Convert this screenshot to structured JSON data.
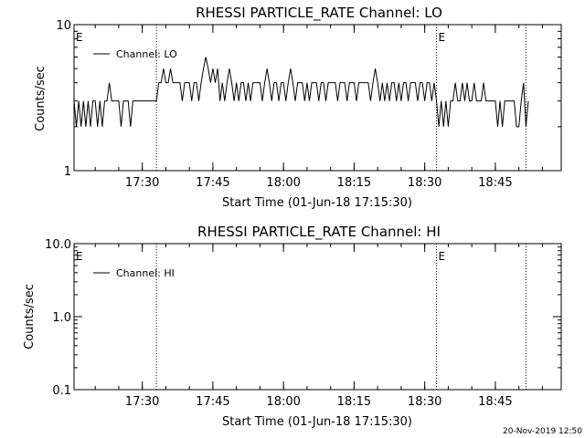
{
  "chart_data": [
    {
      "type": "line",
      "title": "RHESSI PARTICLE_RATE Channel: LO",
      "xlabel": "Start Time (01-Jun-18 17:15:30)",
      "ylabel": "Counts/sec",
      "yscale": "log",
      "ylim": [
        1,
        10
      ],
      "xlim": [
        "17:15:30",
        "18:59:00"
      ],
      "x_ticks": [
        "17:30",
        "17:45",
        "18:00",
        "18:15",
        "18:30",
        "18:45"
      ],
      "y_ticks": [
        "1",
        "10"
      ],
      "grid": false,
      "legend": {
        "position": "top-left",
        "entries": [
          "Channel: LO"
        ]
      },
      "event_markers": [
        {
          "time": "17:15:30",
          "label": "E"
        },
        {
          "time": "17:33:00",
          "label": ""
        },
        {
          "time": "18:32:30",
          "label": "E"
        },
        {
          "time": "18:51:30",
          "label": ""
        }
      ],
      "series": [
        {
          "name": "Channel: LO",
          "color": "#000000",
          "points": [
            [
              "17:15:30",
              3
            ],
            [
              "17:16:00",
              2
            ],
            [
              "17:16:30",
              3
            ],
            [
              "17:17:00",
              2
            ],
            [
              "17:17:30",
              3
            ],
            [
              "17:18:00",
              2
            ],
            [
              "17:18:30",
              3
            ],
            [
              "17:19:00",
              2
            ],
            [
              "17:19:30",
              3
            ],
            [
              "17:20:00",
              3
            ],
            [
              "17:20:30",
              2
            ],
            [
              "17:21:00",
              3
            ],
            [
              "17:21:30",
              2
            ],
            [
              "17:22:00",
              3
            ],
            [
              "17:22:30",
              3
            ],
            [
              "17:23:00",
              4
            ],
            [
              "17:23:30",
              3
            ],
            [
              "17:24:00",
              3
            ],
            [
              "17:25:00",
              3
            ],
            [
              "17:25:30",
              2
            ],
            [
              "17:26:00",
              3
            ],
            [
              "17:27:00",
              3
            ],
            [
              "17:27:30",
              2
            ],
            [
              "17:28:00",
              3
            ],
            [
              "17:29:00",
              3
            ],
            [
              "17:30:00",
              3
            ],
            [
              "17:31:00",
              3
            ],
            [
              "17:32:00",
              3
            ],
            [
              "17:33:00",
              3
            ],
            [
              "17:33:30",
              4
            ],
            [
              "17:34:00",
              4
            ],
            [
              "17:34:30",
              5
            ],
            [
              "17:35:00",
              4
            ],
            [
              "17:35:30",
              4
            ],
            [
              "17:36:00",
              5
            ],
            [
              "17:36:30",
              4
            ],
            [
              "17:37:00",
              4
            ],
            [
              "17:38:00",
              4
            ],
            [
              "17:38:30",
              3
            ],
            [
              "17:39:00",
              4
            ],
            [
              "17:40:00",
              4
            ],
            [
              "17:40:30",
              3
            ],
            [
              "17:41:00",
              4
            ],
            [
              "17:41:30",
              4
            ],
            [
              "17:42:00",
              3
            ],
            [
              "17:42:30",
              4
            ],
            [
              "17:43:00",
              5
            ],
            [
              "17:43:30",
              6
            ],
            [
              "17:44:00",
              5
            ],
            [
              "17:44:30",
              4
            ],
            [
              "17:45:00",
              5
            ],
            [
              "17:45:30",
              4
            ],
            [
              "17:46:00",
              5
            ],
            [
              "17:46:30",
              3
            ],
            [
              "17:47:00",
              4
            ],
            [
              "17:47:30",
              3
            ],
            [
              "17:48:00",
              4
            ],
            [
              "17:48:30",
              5
            ],
            [
              "17:49:00",
              4
            ],
            [
              "17:49:30",
              3
            ],
            [
              "17:50:00",
              4
            ],
            [
              "17:50:30",
              3
            ],
            [
              "17:51:00",
              4
            ],
            [
              "17:51:30",
              4
            ],
            [
              "17:52:00",
              3
            ],
            [
              "17:52:30",
              4
            ],
            [
              "17:53:00",
              3
            ],
            [
              "17:53:30",
              4
            ],
            [
              "17:54:00",
              4
            ],
            [
              "17:55:00",
              4
            ],
            [
              "17:55:30",
              3
            ],
            [
              "17:56:00",
              4
            ],
            [
              "17:56:30",
              5
            ],
            [
              "17:57:00",
              4
            ],
            [
              "17:57:30",
              3
            ],
            [
              "17:58:00",
              4
            ],
            [
              "17:58:30",
              4
            ],
            [
              "17:59:00",
              3
            ],
            [
              "17:59:30",
              4
            ],
            [
              "18:00:00",
              4
            ],
            [
              "18:00:30",
              3
            ],
            [
              "18:01:00",
              4
            ],
            [
              "18:01:30",
              5
            ],
            [
              "18:02:00",
              4
            ],
            [
              "18:02:30",
              3
            ],
            [
              "18:03:00",
              4
            ],
            [
              "18:04:00",
              4
            ],
            [
              "18:04:30",
              3
            ],
            [
              "18:05:00",
              4
            ],
            [
              "18:05:30",
              3
            ],
            [
              "18:06:00",
              4
            ],
            [
              "18:07:00",
              4
            ],
            [
              "18:07:30",
              3
            ],
            [
              "18:08:00",
              4
            ],
            [
              "18:08:30",
              4
            ],
            [
              "18:09:00",
              3
            ],
            [
              "18:09:30",
              4
            ],
            [
              "18:10:00",
              4
            ],
            [
              "18:11:00",
              4
            ],
            [
              "18:11:30",
              3
            ],
            [
              "18:12:00",
              4
            ],
            [
              "18:13:00",
              4
            ],
            [
              "18:13:30",
              3
            ],
            [
              "18:14:00",
              4
            ],
            [
              "18:15:00",
              4
            ],
            [
              "18:15:30",
              3
            ],
            [
              "18:16:00",
              4
            ],
            [
              "18:17:00",
              4
            ],
            [
              "18:18:00",
              4
            ],
            [
              "18:18:30",
              3
            ],
            [
              "18:19:00",
              4
            ],
            [
              "18:19:30",
              5
            ],
            [
              "18:20:00",
              4
            ],
            [
              "18:20:30",
              3
            ],
            [
              "18:21:00",
              4
            ],
            [
              "18:21:30",
              3
            ],
            [
              "18:22:00",
              4
            ],
            [
              "18:22:30",
              3
            ],
            [
              "18:23:00",
              4
            ],
            [
              "18:23:30",
              4
            ],
            [
              "18:24:00",
              3
            ],
            [
              "18:24:30",
              4
            ],
            [
              "18:25:00",
              3
            ],
            [
              "18:25:30",
              4
            ],
            [
              "18:26:00",
              4
            ],
            [
              "18:26:30",
              3
            ],
            [
              "18:27:00",
              4
            ],
            [
              "18:28:00",
              4
            ],
            [
              "18:28:30",
              3
            ],
            [
              "18:29:00",
              4
            ],
            [
              "18:29:30",
              4
            ],
            [
              "18:30:00",
              3
            ],
            [
              "18:30:30",
              4
            ],
            [
              "18:31:00",
              4
            ],
            [
              "18:31:30",
              3
            ],
            [
              "18:32:00",
              4
            ],
            [
              "18:32:30",
              3
            ],
            [
              "18:33:00",
              2
            ],
            [
              "18:33:30",
              3
            ],
            [
              "18:34:00",
              2
            ],
            [
              "18:34:30",
              3
            ],
            [
              "18:35:00",
              2
            ],
            [
              "18:35:30",
              3
            ],
            [
              "18:36:00",
              3
            ],
            [
              "18:36:30",
              4
            ],
            [
              "18:37:00",
              3
            ],
            [
              "18:37:30",
              3
            ],
            [
              "18:38:00",
              4
            ],
            [
              "18:38:30",
              3
            ],
            [
              "18:39:00",
              4
            ],
            [
              "18:39:30",
              3
            ],
            [
              "18:40:00",
              3
            ],
            [
              "18:40:30",
              4
            ],
            [
              "18:41:00",
              3
            ],
            [
              "18:42:00",
              3
            ],
            [
              "18:42:30",
              4
            ],
            [
              "18:43:00",
              3
            ],
            [
              "18:44:00",
              3
            ],
            [
              "18:45:00",
              3
            ],
            [
              "18:45:30",
              2
            ],
            [
              "18:46:00",
              3
            ],
            [
              "18:46:30",
              2
            ],
            [
              "18:47:00",
              3
            ],
            [
              "18:48:00",
              3
            ],
            [
              "18:49:00",
              3
            ],
            [
              "18:49:30",
              2
            ],
            [
              "18:50:00",
              2
            ],
            [
              "18:50:30",
              3
            ],
            [
              "18:51:00",
              4
            ],
            [
              "18:51:30",
              2
            ],
            [
              "18:52:00",
              3
            ]
          ]
        }
      ]
    },
    {
      "type": "line",
      "title": "RHESSI PARTICLE_RATE Channel: HI",
      "xlabel": "Start Time (01-Jun-18 17:15:30)",
      "ylabel": "Counts/sec",
      "yscale": "log",
      "ylim": [
        0.1,
        10
      ],
      "xlim": [
        "17:15:30",
        "18:59:00"
      ],
      "x_ticks": [
        "17:30",
        "17:45",
        "18:00",
        "18:15",
        "18:30",
        "18:45"
      ],
      "y_ticks": [
        "0.1",
        "1.0",
        "10.0"
      ],
      "grid": false,
      "legend": {
        "position": "top-left",
        "entries": [
          "Channel: HI"
        ]
      },
      "event_markers": [
        {
          "time": "17:15:30",
          "label": "E"
        },
        {
          "time": "17:33:00",
          "label": ""
        },
        {
          "time": "18:32:30",
          "label": "E"
        },
        {
          "time": "18:51:30",
          "label": ""
        }
      ],
      "series": [
        {
          "name": "Channel: HI",
          "color": "#000000",
          "points": []
        }
      ]
    }
  ],
  "footer": {
    "timestamp": "20-Nov-2019 12:50"
  }
}
